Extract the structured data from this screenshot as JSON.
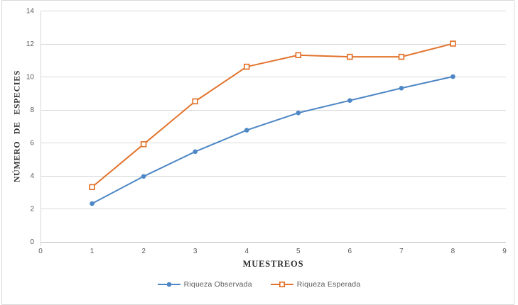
{
  "chart_data": {
    "type": "line",
    "title": "",
    "xlabel": "MUESTREOS",
    "ylabel": "NÚMERO DE ESPECIES",
    "x": [
      1,
      2,
      3,
      4,
      5,
      6,
      7,
      8
    ],
    "series": [
      {
        "name": "Riqueza Observada",
        "color": "#4E87C5",
        "marker": "circle",
        "values": [
          2.3,
          3.95,
          5.45,
          6.75,
          7.8,
          8.55,
          9.3,
          10.0
        ]
      },
      {
        "name": "Riqueza Esperada",
        "color": "#E2732C",
        "marker": "open-square",
        "values": [
          3.3,
          5.9,
          8.5,
          10.6,
          11.3,
          11.2,
          11.2,
          12.0
        ]
      }
    ],
    "xlim": [
      0,
      9
    ],
    "ylim": [
      0,
      14
    ],
    "x_ticks": [
      0,
      1,
      2,
      3,
      4,
      5,
      6,
      7,
      8,
      9
    ],
    "y_ticks": [
      0,
      2,
      4,
      6,
      8,
      10,
      12,
      14
    ],
    "grid": "horizontal",
    "legend_position": "bottom",
    "colors": {
      "gridline": "#D9D9D9",
      "axis_line": "#BFBFBF",
      "tick_label": "#595959",
      "axis_title": "#303030",
      "legend_text": "#595959",
      "background": "#FFFFFF",
      "border": "#D9D9D9"
    }
  }
}
